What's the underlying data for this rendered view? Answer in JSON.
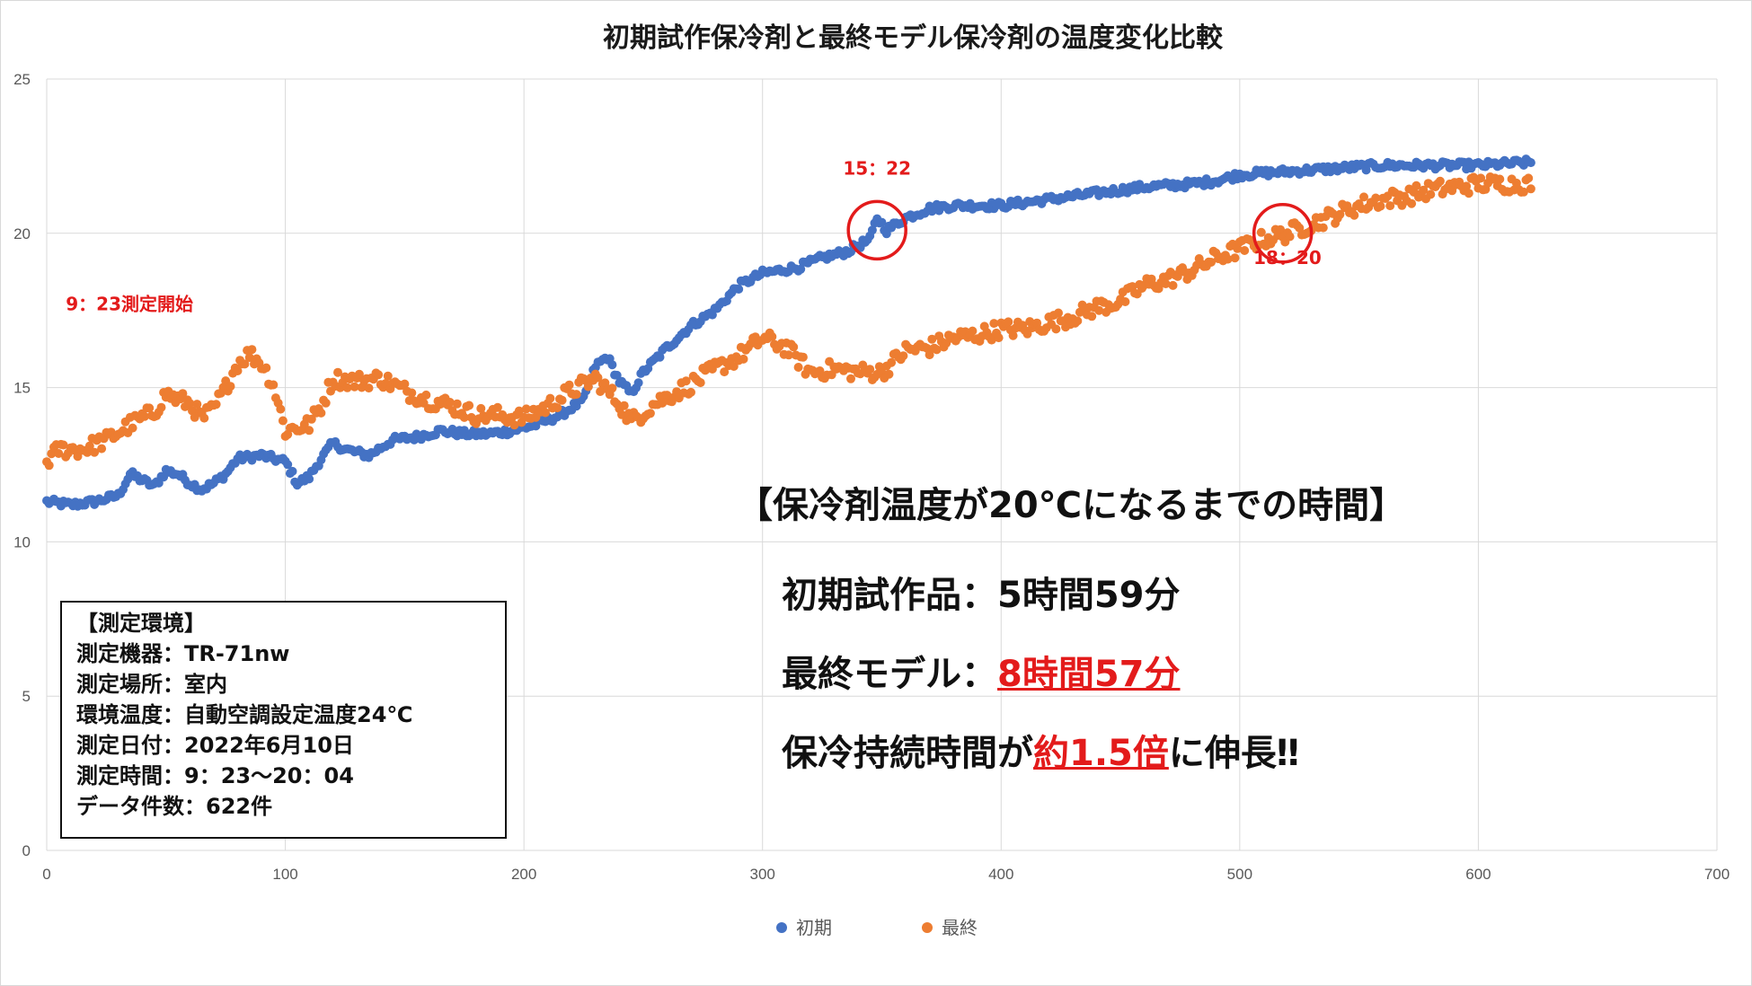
{
  "chart_data": {
    "type": "scatter",
    "title": "初期試作保冷剤と最終モデル保冷剤の温度変化比較",
    "xlim": [
      0,
      700
    ],
    "ylim": [
      0,
      25
    ],
    "xticks": [
      0,
      100,
      200,
      300,
      400,
      500,
      600,
      700
    ],
    "yticks": [
      0,
      5,
      10,
      15,
      20,
      25
    ],
    "grid": true,
    "legend_position": "bottom",
    "series": [
      {
        "name": "初期",
        "color": "#4472c4",
        "keypoints": [
          [
            0,
            11.3
          ],
          [
            10,
            11.2
          ],
          [
            20,
            11.3
          ],
          [
            30,
            11.5
          ],
          [
            35,
            12.2
          ],
          [
            40,
            12.0
          ],
          [
            45,
            11.8
          ],
          [
            50,
            12.3
          ],
          [
            55,
            12.2
          ],
          [
            60,
            11.9
          ],
          [
            65,
            11.7
          ],
          [
            70,
            11.9
          ],
          [
            75,
            12.2
          ],
          [
            80,
            12.7
          ],
          [
            90,
            12.8
          ],
          [
            100,
            12.6
          ],
          [
            105,
            11.9
          ],
          [
            110,
            12.1
          ],
          [
            115,
            12.7
          ],
          [
            120,
            13.2
          ],
          [
            125,
            13.0
          ],
          [
            135,
            12.8
          ],
          [
            145,
            13.3
          ],
          [
            155,
            13.4
          ],
          [
            165,
            13.6
          ],
          [
            175,
            13.5
          ],
          [
            185,
            13.5
          ],
          [
            195,
            13.6
          ],
          [
            205,
            13.8
          ],
          [
            215,
            14.1
          ],
          [
            225,
            14.6
          ],
          [
            230,
            15.7
          ],
          [
            235,
            16.0
          ],
          [
            240,
            15.2
          ],
          [
            245,
            14.8
          ],
          [
            250,
            15.5
          ],
          [
            260,
            16.3
          ],
          [
            270,
            17.0
          ],
          [
            280,
            17.5
          ],
          [
            290,
            18.3
          ],
          [
            300,
            18.7
          ],
          [
            315,
            18.9
          ],
          [
            325,
            19.2
          ],
          [
            335,
            19.4
          ],
          [
            345,
            19.8
          ],
          [
            348,
            20.5
          ],
          [
            352,
            20.1
          ],
          [
            360,
            20.5
          ],
          [
            370,
            20.8
          ],
          [
            380,
            20.9
          ],
          [
            400,
            20.9
          ],
          [
            420,
            21.1
          ],
          [
            440,
            21.3
          ],
          [
            460,
            21.5
          ],
          [
            480,
            21.6
          ],
          [
            490,
            21.7
          ],
          [
            500,
            21.9
          ],
          [
            520,
            22.0
          ],
          [
            540,
            22.1
          ],
          [
            560,
            22.2
          ],
          [
            580,
            22.2
          ],
          [
            600,
            22.2
          ],
          [
            622,
            22.3
          ]
        ]
      },
      {
        "name": "最終",
        "color": "#ed7d31",
        "keypoints": [
          [
            0,
            12.6
          ],
          [
            5,
            13.0
          ],
          [
            15,
            13.0
          ],
          [
            25,
            13.3
          ],
          [
            35,
            13.8
          ],
          [
            45,
            14.2
          ],
          [
            50,
            14.8
          ],
          [
            55,
            14.6
          ],
          [
            60,
            14.5
          ],
          [
            65,
            14.0
          ],
          [
            70,
            14.3
          ],
          [
            75,
            15.0
          ],
          [
            80,
            15.8
          ],
          [
            85,
            16.1
          ],
          [
            90,
            15.8
          ],
          [
            95,
            15.1
          ],
          [
            100,
            13.6
          ],
          [
            110,
            13.8
          ],
          [
            115,
            14.4
          ],
          [
            120,
            15.3
          ],
          [
            130,
            15.2
          ],
          [
            140,
            15.3
          ],
          [
            150,
            14.9
          ],
          [
            160,
            14.6
          ],
          [
            170,
            14.4
          ],
          [
            180,
            14.1
          ],
          [
            190,
            14.1
          ],
          [
            200,
            14.0
          ],
          [
            210,
            14.4
          ],
          [
            220,
            14.9
          ],
          [
            230,
            15.3
          ],
          [
            240,
            14.5
          ],
          [
            245,
            13.9
          ],
          [
            255,
            14.5
          ],
          [
            270,
            15.1
          ],
          [
            280,
            15.6
          ],
          [
            290,
            16.0
          ],
          [
            300,
            16.6
          ],
          [
            310,
            16.3
          ],
          [
            320,
            15.5
          ],
          [
            330,
            15.6
          ],
          [
            340,
            15.5
          ],
          [
            350,
            15.5
          ],
          [
            360,
            16.2
          ],
          [
            370,
            16.3
          ],
          [
            380,
            16.6
          ],
          [
            390,
            16.7
          ],
          [
            400,
            16.9
          ],
          [
            410,
            16.9
          ],
          [
            420,
            17.1
          ],
          [
            430,
            17.3
          ],
          [
            440,
            17.6
          ],
          [
            450,
            17.8
          ],
          [
            460,
            18.3
          ],
          [
            470,
            18.5
          ],
          [
            480,
            18.8
          ],
          [
            490,
            19.2
          ],
          [
            500,
            19.5
          ],
          [
            510,
            19.8
          ],
          [
            520,
            20.0
          ],
          [
            530,
            20.3
          ],
          [
            540,
            20.6
          ],
          [
            550,
            20.9
          ],
          [
            560,
            21.1
          ],
          [
            570,
            21.2
          ],
          [
            580,
            21.4
          ],
          [
            600,
            21.6
          ],
          [
            622,
            21.6
          ]
        ]
      }
    ],
    "annotations": [
      {
        "text": "9：23測定開始",
        "x": 8,
        "y": 17.5
      },
      {
        "text": "15：22",
        "x": 348,
        "y": 21.9
      },
      {
        "text": "18：20",
        "x": 520,
        "y": 19.0
      }
    ],
    "circles": [
      {
        "x": 348,
        "y": 20.1
      },
      {
        "x": 518,
        "y": 20.0
      }
    ]
  },
  "env_box": {
    "lines": [
      "【測定環境】",
      "測定機器：TR-71nw",
      "測定場所：室内",
      "環境温度：自動空調設定温度24℃",
      "測定日付：2022年6月10日",
      "測定時間：9：23〜20：04",
      "データ件数：622件"
    ]
  },
  "summary": {
    "heading": "【保冷剤温度が20℃になるまでの時間】",
    "line1": "初期試作品：5時間59分",
    "line2_prefix": "最終モデル：",
    "line2_value": "8時間57分",
    "line3_prefix": "保冷持続時間が",
    "line3_value": "約1.5倍",
    "line3_suffix": "に伸長‼"
  },
  "colors": {
    "accent_red": "#e31b1b",
    "grid": "#d9d9d9"
  }
}
